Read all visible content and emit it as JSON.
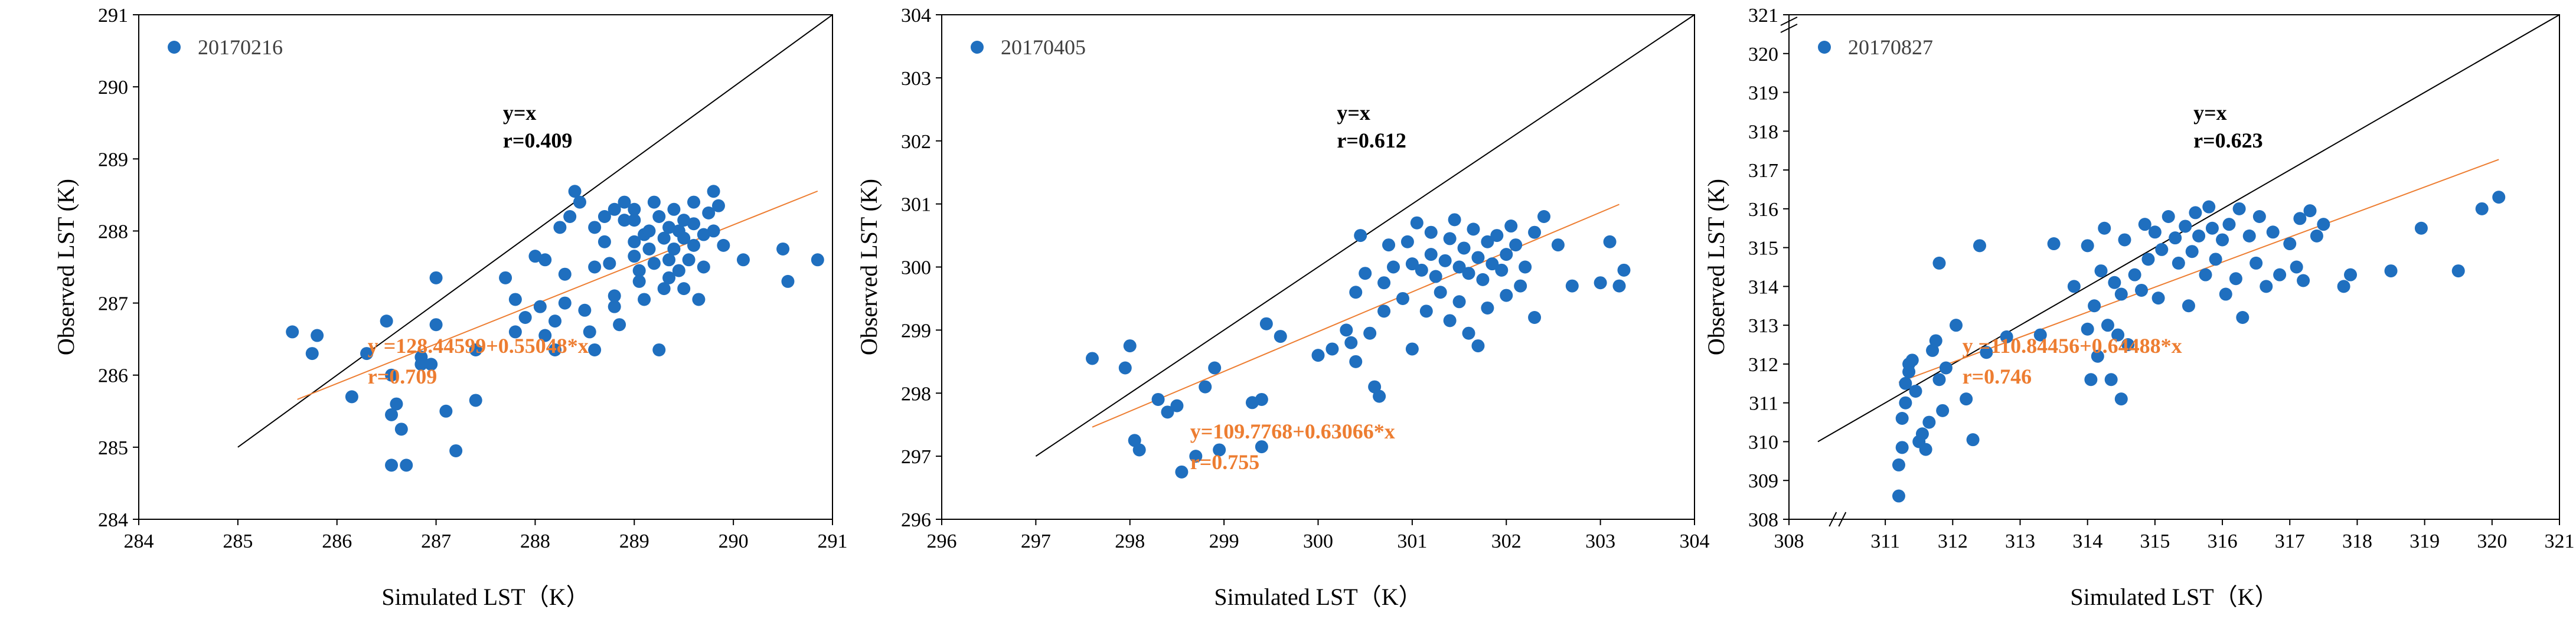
{
  "colors": {
    "point": "#1F6FBF",
    "fit": "#ED7D31",
    "identity": "#000000",
    "axis": "#000000"
  },
  "chart_data": [
    {
      "type": "scatter",
      "title": "",
      "legend": {
        "label": "20170216",
        "position": "top-left"
      },
      "xlabel": "Simulated LST（K）",
      "ylabel": "Observed LST (K)",
      "xlim": [
        284,
        291
      ],
      "ylim": [
        284,
        291
      ],
      "xticks": [
        284,
        285,
        286,
        287,
        288,
        289,
        290,
        291
      ],
      "yticks": [
        284,
        285,
        286,
        287,
        288,
        289,
        290,
        291
      ],
      "axis_break": false,
      "identity": {
        "label": "y=x",
        "r": "r=0.409",
        "x1": 285.0,
        "x2": 291.0
      },
      "fit": {
        "equation": "y =128.44599+0.55048*x",
        "r": "r=0.709",
        "intercept": 128.44599,
        "slope": 0.55048,
        "x1": 285.6,
        "x2": 290.85
      },
      "points": [
        [
          285.55,
          286.6
        ],
        [
          285.75,
          286.3
        ],
        [
          285.8,
          286.55
        ],
        [
          286.15,
          285.7
        ],
        [
          286.3,
          286.3
        ],
        [
          286.5,
          286.75
        ],
        [
          286.55,
          286.0
        ],
        [
          286.6,
          285.6
        ],
        [
          286.65,
          285.25
        ],
        [
          286.55,
          285.45
        ],
        [
          286.55,
          284.75
        ],
        [
          286.7,
          284.75
        ],
        [
          286.85,
          286.15
        ],
        [
          286.85,
          286.25
        ],
        [
          286.95,
          286.15
        ],
        [
          287.0,
          287.35
        ],
        [
          287.0,
          286.7
        ],
        [
          287.1,
          285.5
        ],
        [
          287.2,
          284.95
        ],
        [
          287.4,
          285.65
        ],
        [
          287.4,
          286.35
        ],
        [
          287.7,
          287.35
        ],
        [
          287.8,
          286.6
        ],
        [
          287.8,
          287.05
        ],
        [
          287.9,
          286.8
        ],
        [
          288.0,
          287.65
        ],
        [
          288.1,
          287.6
        ],
        [
          288.05,
          286.95
        ],
        [
          288.1,
          286.55
        ],
        [
          288.2,
          286.35
        ],
        [
          288.2,
          286.75
        ],
        [
          288.3,
          287.0
        ],
        [
          288.3,
          287.4
        ],
        [
          288.25,
          288.05
        ],
        [
          288.35,
          288.2
        ],
        [
          288.45,
          288.4
        ],
        [
          288.4,
          288.55
        ],
        [
          288.5,
          286.9
        ],
        [
          288.55,
          286.6
        ],
        [
          288.6,
          287.5
        ],
        [
          288.6,
          288.05
        ],
        [
          288.6,
          286.35
        ],
        [
          288.7,
          288.2
        ],
        [
          288.7,
          287.85
        ],
        [
          288.75,
          287.55
        ],
        [
          288.8,
          288.3
        ],
        [
          288.8,
          286.95
        ],
        [
          288.8,
          287.1
        ],
        [
          288.9,
          288.4
        ],
        [
          288.9,
          288.15
        ],
        [
          288.85,
          286.7
        ],
        [
          289.0,
          288.3
        ],
        [
          289.0,
          288.15
        ],
        [
          289.0,
          287.85
        ],
        [
          289.0,
          287.65
        ],
        [
          289.05,
          287.45
        ],
        [
          289.05,
          287.3
        ],
        [
          289.1,
          287.95
        ],
        [
          289.1,
          287.05
        ],
        [
          289.15,
          287.75
        ],
        [
          289.15,
          288.0
        ],
        [
          289.2,
          288.4
        ],
        [
          289.2,
          287.55
        ],
        [
          289.25,
          286.35
        ],
        [
          289.25,
          288.2
        ],
        [
          289.3,
          287.9
        ],
        [
          289.3,
          287.2
        ],
        [
          289.35,
          288.05
        ],
        [
          289.35,
          287.6
        ],
        [
          289.35,
          287.35
        ],
        [
          289.4,
          288.3
        ],
        [
          289.4,
          287.75
        ],
        [
          289.45,
          288.0
        ],
        [
          289.45,
          287.45
        ],
        [
          289.5,
          288.15
        ],
        [
          289.5,
          287.9
        ],
        [
          289.5,
          287.2
        ],
        [
          289.55,
          287.6
        ],
        [
          289.6,
          288.4
        ],
        [
          289.6,
          288.1
        ],
        [
          289.6,
          287.8
        ],
        [
          289.65,
          287.05
        ],
        [
          289.7,
          287.95
        ],
        [
          289.7,
          287.5
        ],
        [
          289.75,
          288.25
        ],
        [
          289.8,
          288.55
        ],
        [
          289.8,
          288.0
        ],
        [
          289.85,
          288.35
        ],
        [
          289.9,
          287.8
        ],
        [
          290.1,
          287.6
        ],
        [
          290.5,
          287.75
        ],
        [
          290.55,
          287.3
        ],
        [
          290.85,
          287.6
        ]
      ]
    },
    {
      "type": "scatter",
      "title": "",
      "legend": {
        "label": "20170405",
        "position": "top-left"
      },
      "xlabel": "Simulated LST（K）",
      "ylabel": "Observed LST (K)",
      "xlim": [
        296,
        304
      ],
      "ylim": [
        296,
        304
      ],
      "xticks": [
        296,
        297,
        298,
        299,
        300,
        301,
        302,
        303,
        304
      ],
      "yticks": [
        296,
        297,
        298,
        299,
        300,
        301,
        302,
        303,
        304
      ],
      "axis_break": false,
      "identity": {
        "label": "y=x",
        "r": "r=0.612",
        "x1": 297.0,
        "x2": 304.0
      },
      "fit": {
        "equation": "y=109.7768+0.63066*x",
        "r": "r=0.755",
        "intercept": 109.7768,
        "slope": 0.63066,
        "x1": 297.6,
        "x2": 303.2
      },
      "points": [
        [
          297.6,
          298.55
        ],
        [
          297.95,
          298.4
        ],
        [
          298.0,
          298.75
        ],
        [
          298.05,
          297.25
        ],
        [
          298.1,
          297.1
        ],
        [
          298.3,
          297.9
        ],
        [
          298.4,
          297.7
        ],
        [
          298.5,
          297.8
        ],
        [
          298.55,
          296.75
        ],
        [
          298.7,
          297.0
        ],
        [
          298.8,
          298.1
        ],
        [
          298.9,
          298.4
        ],
        [
          298.95,
          297.1
        ],
        [
          299.3,
          297.85
        ],
        [
          299.4,
          297.9
        ],
        [
          299.4,
          297.15
        ],
        [
          299.45,
          299.1
        ],
        [
          299.6,
          298.9
        ],
        [
          300.0,
          298.6
        ],
        [
          300.15,
          298.7
        ],
        [
          300.3,
          299.0
        ],
        [
          300.35,
          298.8
        ],
        [
          300.4,
          299.6
        ],
        [
          300.4,
          298.5
        ],
        [
          300.45,
          300.5
        ],
        [
          300.5,
          299.9
        ],
        [
          300.55,
          298.95
        ],
        [
          300.6,
          298.1
        ],
        [
          300.65,
          297.95
        ],
        [
          300.7,
          299.3
        ],
        [
          300.7,
          299.75
        ],
        [
          300.75,
          300.35
        ],
        [
          300.8,
          300.0
        ],
        [
          300.9,
          299.5
        ],
        [
          300.95,
          300.4
        ],
        [
          301.0,
          298.7
        ],
        [
          301.0,
          300.05
        ],
        [
          301.05,
          300.7
        ],
        [
          301.1,
          299.95
        ],
        [
          301.15,
          299.3
        ],
        [
          301.2,
          300.55
        ],
        [
          301.2,
          300.2
        ],
        [
          301.25,
          299.85
        ],
        [
          301.3,
          299.6
        ],
        [
          301.35,
          300.1
        ],
        [
          301.4,
          300.45
        ],
        [
          301.4,
          299.15
        ],
        [
          301.45,
          300.75
        ],
        [
          301.5,
          299.45
        ],
        [
          301.5,
          300.0
        ],
        [
          301.55,
          300.3
        ],
        [
          301.6,
          299.9
        ],
        [
          301.6,
          298.95
        ],
        [
          301.65,
          300.6
        ],
        [
          301.7,
          300.15
        ],
        [
          301.7,
          298.75
        ],
        [
          301.75,
          299.8
        ],
        [
          301.8,
          300.4
        ],
        [
          301.8,
          299.35
        ],
        [
          301.85,
          300.05
        ],
        [
          301.9,
          300.5
        ],
        [
          301.95,
          299.95
        ],
        [
          302.0,
          300.2
        ],
        [
          302.0,
          299.55
        ],
        [
          302.05,
          300.65
        ],
        [
          302.1,
          300.35
        ],
        [
          302.15,
          299.7
        ],
        [
          302.2,
          300.0
        ],
        [
          302.3,
          300.55
        ],
        [
          302.3,
          299.2
        ],
        [
          302.4,
          300.8
        ],
        [
          302.55,
          300.35
        ],
        [
          302.7,
          299.7
        ],
        [
          303.0,
          299.75
        ],
        [
          303.1,
          300.4
        ],
        [
          303.2,
          299.7
        ],
        [
          303.25,
          299.95
        ]
      ]
    },
    {
      "type": "scatter",
      "title": "",
      "legend": {
        "label": "20170827",
        "position": "top-left"
      },
      "xlabel": "Simulated LST（K）",
      "ylabel": "Observed LST (K)",
      "xlim": [
        310,
        321
      ],
      "ylim": [
        308,
        321
      ],
      "xticks": [
        308,
        311,
        312,
        313,
        314,
        315,
        316,
        317,
        318,
        319,
        320,
        321
      ],
      "yticks": [
        308,
        309,
        310,
        311,
        312,
        313,
        314,
        315,
        316,
        317,
        318,
        319,
        320,
        321
      ],
      "axis_break": true,
      "identity": {
        "label": "y=x",
        "r": "r=0.623",
        "x1": 310.0,
        "x2": 321.0
      },
      "fit": {
        "equation": "y =110.84456+0.64488*x",
        "r": "r=0.746",
        "intercept": 110.84456,
        "slope": 0.64488,
        "x1": 311.2,
        "x2": 320.1
      },
      "points": [
        [
          311.2,
          308.6
        ],
        [
          311.2,
          309.4
        ],
        [
          311.25,
          309.85
        ],
        [
          311.25,
          310.6
        ],
        [
          311.3,
          311.0
        ],
        [
          311.3,
          311.5
        ],
        [
          311.35,
          311.8
        ],
        [
          311.35,
          312.0
        ],
        [
          311.4,
          312.1
        ],
        [
          311.45,
          311.3
        ],
        [
          311.5,
          310.0
        ],
        [
          311.55,
          310.2
        ],
        [
          311.6,
          309.8
        ],
        [
          311.65,
          310.5
        ],
        [
          311.7,
          312.35
        ],
        [
          311.75,
          312.6
        ],
        [
          311.8,
          311.6
        ],
        [
          311.8,
          314.6
        ],
        [
          311.85,
          310.8
        ],
        [
          311.9,
          311.9
        ],
        [
          312.05,
          313.0
        ],
        [
          312.2,
          311.1
        ],
        [
          312.3,
          310.05
        ],
        [
          312.4,
          315.05
        ],
        [
          312.5,
          312.3
        ],
        [
          312.8,
          312.7
        ],
        [
          313.3,
          312.75
        ],
        [
          313.5,
          315.1
        ],
        [
          313.8,
          314.0
        ],
        [
          314.0,
          315.05
        ],
        [
          314.0,
          312.9
        ],
        [
          314.05,
          311.6
        ],
        [
          314.1,
          313.5
        ],
        [
          314.15,
          312.2
        ],
        [
          314.2,
          314.4
        ],
        [
          314.25,
          315.5
        ],
        [
          314.3,
          313.0
        ],
        [
          314.35,
          311.6
        ],
        [
          314.4,
          314.1
        ],
        [
          314.45,
          312.75
        ],
        [
          314.5,
          313.8
        ],
        [
          314.5,
          311.1
        ],
        [
          314.55,
          315.2
        ],
        [
          314.6,
          312.5
        ],
        [
          314.7,
          314.3
        ],
        [
          314.8,
          313.9
        ],
        [
          314.85,
          315.6
        ],
        [
          314.9,
          314.7
        ],
        [
          315.0,
          315.4
        ],
        [
          315.05,
          313.7
        ],
        [
          315.1,
          314.95
        ],
        [
          315.2,
          315.8
        ],
        [
          315.3,
          315.25
        ],
        [
          315.35,
          314.6
        ],
        [
          315.45,
          315.55
        ],
        [
          315.5,
          313.5
        ],
        [
          315.55,
          314.9
        ],
        [
          315.6,
          315.9
        ],
        [
          315.65,
          315.3
        ],
        [
          315.75,
          314.3
        ],
        [
          315.8,
          316.05
        ],
        [
          315.85,
          315.5
        ],
        [
          315.9,
          314.7
        ],
        [
          316.0,
          315.2
        ],
        [
          316.05,
          313.8
        ],
        [
          316.1,
          315.6
        ],
        [
          316.2,
          314.2
        ],
        [
          316.25,
          316.0
        ],
        [
          316.3,
          313.2
        ],
        [
          316.4,
          315.3
        ],
        [
          316.5,
          314.6
        ],
        [
          316.55,
          315.8
        ],
        [
          316.65,
          314.0
        ],
        [
          316.75,
          315.4
        ],
        [
          316.85,
          314.3
        ],
        [
          317.0,
          315.1
        ],
        [
          317.1,
          314.5
        ],
        [
          317.15,
          315.75
        ],
        [
          317.2,
          314.15
        ],
        [
          317.3,
          315.95
        ],
        [
          317.4,
          315.3
        ],
        [
          317.5,
          315.6
        ],
        [
          317.8,
          314.0
        ],
        [
          317.9,
          314.3
        ],
        [
          318.5,
          314.4
        ],
        [
          318.95,
          315.5
        ],
        [
          319.5,
          314.4
        ],
        [
          319.85,
          316.0
        ],
        [
          320.1,
          316.3
        ]
      ]
    }
  ]
}
